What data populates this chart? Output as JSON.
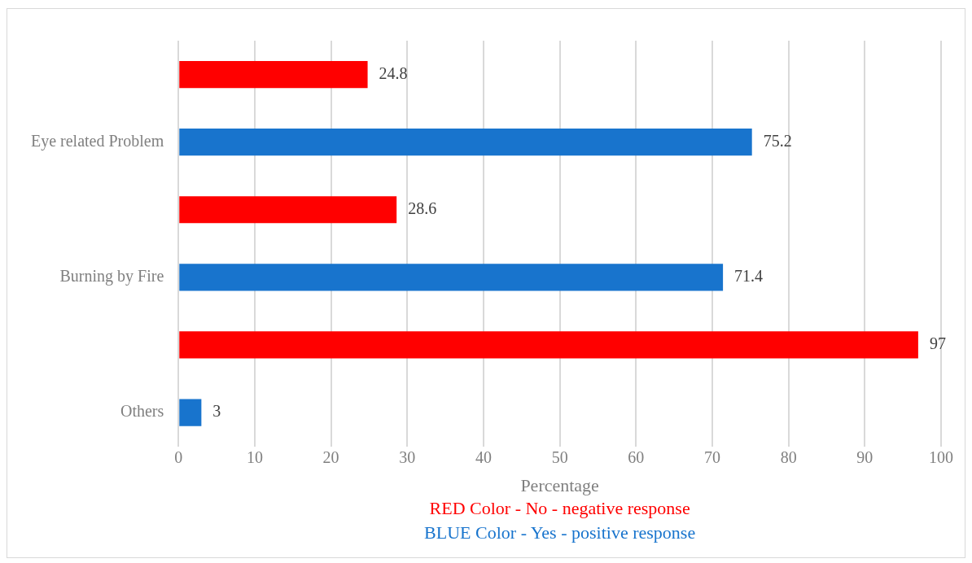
{
  "chart_data": {
    "type": "bar",
    "orientation": "horizontal",
    "xlabel": "Percentage",
    "categories": [
      null,
      "Eye related Problem",
      null,
      "Burning by Fire",
      null,
      "Others"
    ],
    "values": [
      24.8,
      75.2,
      28.6,
      71.4,
      97,
      3
    ],
    "colors": [
      "#ff0000",
      "#1874cd",
      "#ff0000",
      "#1874cd",
      "#ff0000",
      "#1874cd"
    ],
    "xlim": [
      0,
      100
    ],
    "xticks": [
      0,
      10,
      20,
      30,
      40,
      50,
      60,
      70,
      80,
      90,
      100
    ],
    "grid": "x",
    "data_labels": true,
    "legend": false,
    "annotations": [
      "RED Color - No - negative response",
      "BLUE Color - Yes - positive response"
    ]
  }
}
